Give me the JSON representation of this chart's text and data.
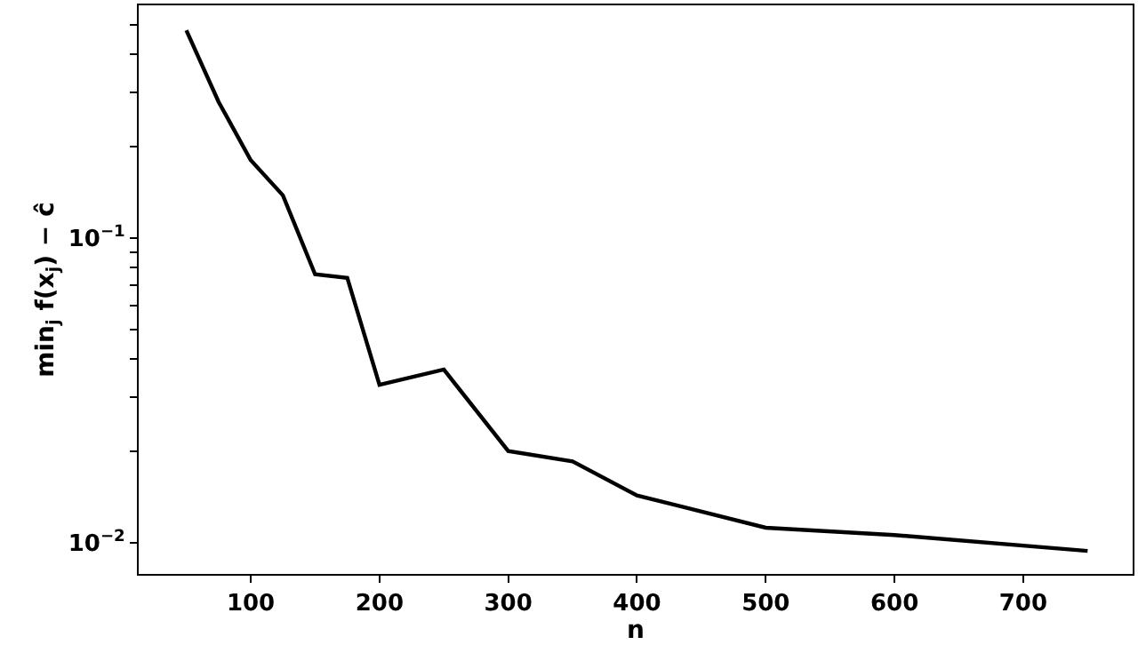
{
  "chart_data": {
    "type": "line",
    "xlabel": "n",
    "ylabel": "min$_{j}$ f(x$_{j}$) − ĉ",
    "x": [
      50,
      75,
      100,
      125,
      150,
      175,
      200,
      250,
      300,
      350,
      400,
      500,
      600,
      750
    ],
    "series": [
      {
        "color": "#000000",
        "values": [
          0.48,
          0.28,
          0.18,
          0.138,
          0.076,
          0.074,
          0.033,
          0.037,
          0.02,
          0.0185,
          0.0143,
          0.0112,
          0.0106,
          0.0094
        ]
      }
    ],
    "log": "y",
    "xlim": [
      13,
      785
    ],
    "ylim": [
      0.0079,
      0.58
    ],
    "xticks": [
      100,
      200,
      300,
      400,
      500,
      600,
      700
    ],
    "yticks": [
      {
        "value": 0.01,
        "label": "10$^{−2}$"
      },
      {
        "value": 0.1,
        "label": "10$^{−1}$"
      },
      {
        "value": 0.02,
        "label": null
      },
      {
        "value": 0.03,
        "label": null
      },
      {
        "value": 0.04,
        "label": null
      },
      {
        "value": 0.05,
        "label": null
      },
      {
        "value": 0.06,
        "label": null
      },
      {
        "value": 0.07,
        "label": null
      },
      {
        "value": 0.08,
        "label": null
      },
      {
        "value": 0.09,
        "label": null
      },
      {
        "value": 0.2,
        "label": null
      },
      {
        "value": 0.3,
        "label": null
      },
      {
        "value": 0.4,
        "label": null
      },
      {
        "value": 0.5,
        "label": null
      }
    ],
    "grid": false,
    "marker": "none",
    "line_style": "solid"
  }
}
